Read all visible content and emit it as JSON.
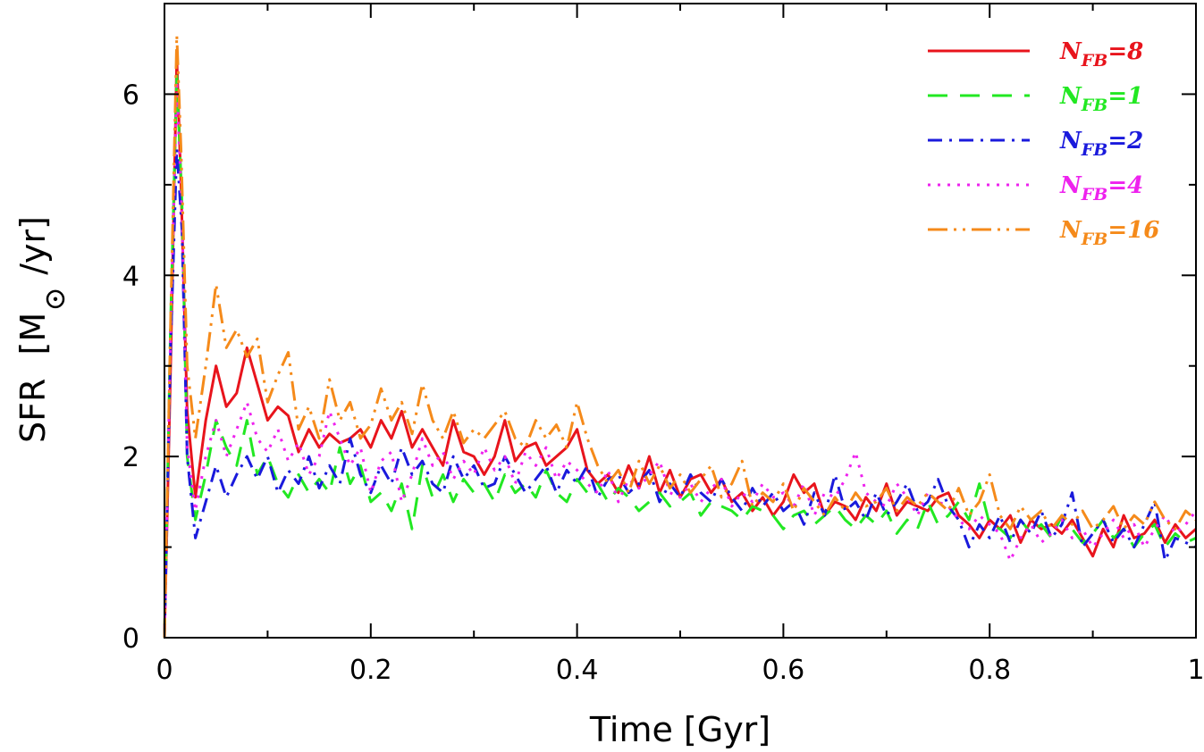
{
  "chart_data": {
    "type": "line",
    "xlabel": "Time [Gyr]",
    "ylabel_main": "SFR",
    "ylabel_unit_prefix": "[M",
    "ylabel_unit_suffix": "/yr]",
    "xlim": [
      0,
      1
    ],
    "ylim": [
      0,
      7
    ],
    "x_ticks": [
      0,
      0.2,
      0.4,
      0.6,
      0.8,
      1
    ],
    "x_tick_labels": [
      "0",
      "0.2",
      "0.4",
      "0.6",
      "0.8",
      "1"
    ],
    "y_ticks": [
      0,
      2,
      4,
      6
    ],
    "y_tick_labels": [
      "0",
      "2",
      "4",
      "6"
    ],
    "x_minor_step": 0.1,
    "y_minor_step": 1,
    "grid": false,
    "legend_position": "top-right",
    "series": [
      {
        "label_prefix": "N",
        "label_sub": "FB",
        "label_value": "=8",
        "color": "#e8141c",
        "style": "solid",
        "x": [
          0,
          0.006,
          0.012,
          0.016,
          0.022,
          0.03,
          0.04,
          0.05,
          0.06,
          0.07,
          0.08,
          0.09,
          0.1,
          0.11,
          0.12,
          0.13,
          0.14,
          0.15,
          0.16,
          0.17,
          0.18,
          0.19,
          0.2,
          0.21,
          0.22,
          0.23,
          0.24,
          0.25,
          0.26,
          0.27,
          0.28,
          0.29,
          0.3,
          0.31,
          0.32,
          0.33,
          0.34,
          0.35,
          0.36,
          0.37,
          0.38,
          0.39,
          0.4,
          0.41,
          0.42,
          0.43,
          0.44,
          0.45,
          0.46,
          0.47,
          0.48,
          0.49,
          0.5,
          0.51,
          0.52,
          0.53,
          0.54,
          0.55,
          0.56,
          0.57,
          0.58,
          0.59,
          0.6,
          0.61,
          0.62,
          0.63,
          0.64,
          0.65,
          0.66,
          0.67,
          0.68,
          0.69,
          0.7,
          0.71,
          0.72,
          0.73,
          0.74,
          0.75,
          0.76,
          0.77,
          0.78,
          0.79,
          0.8,
          0.81,
          0.82,
          0.83,
          0.84,
          0.85,
          0.86,
          0.87,
          0.88,
          0.89,
          0.9,
          0.91,
          0.92,
          0.93,
          0.94,
          0.95,
          0.96,
          0.97,
          0.98,
          0.99,
          1.0
        ],
        "y": [
          0,
          3.0,
          6.4,
          5.0,
          2.5,
          1.55,
          2.4,
          3.0,
          2.55,
          2.7,
          3.2,
          2.8,
          2.4,
          2.55,
          2.45,
          2.05,
          2.3,
          2.1,
          2.25,
          2.15,
          2.2,
          2.3,
          2.1,
          2.4,
          2.2,
          2.5,
          2.1,
          2.3,
          2.1,
          1.9,
          2.4,
          2.05,
          2.0,
          1.8,
          2.0,
          2.4,
          1.95,
          2.1,
          2.15,
          1.9,
          2.0,
          2.1,
          2.3,
          1.85,
          1.7,
          1.8,
          1.6,
          1.9,
          1.65,
          2.0,
          1.6,
          1.85,
          1.55,
          1.75,
          1.8,
          1.6,
          1.75,
          1.5,
          1.6,
          1.4,
          1.55,
          1.35,
          1.5,
          1.8,
          1.6,
          1.7,
          1.35,
          1.5,
          1.45,
          1.3,
          1.55,
          1.4,
          1.7,
          1.35,
          1.5,
          1.45,
          1.4,
          1.55,
          1.6,
          1.35,
          1.25,
          1.1,
          1.3,
          1.2,
          1.35,
          1.05,
          1.3,
          1.2,
          1.25,
          1.15,
          1.3,
          1.1,
          0.9,
          1.2,
          1.0,
          1.35,
          1.1,
          1.15,
          1.3,
          1.05,
          1.25,
          1.1,
          1.2
        ]
      },
      {
        "label_prefix": "N",
        "label_sub": "FB",
        "label_value": "=1",
        "color": "#22e822",
        "style": "dashed",
        "x": [
          0,
          0.006,
          0.012,
          0.017,
          0.022,
          0.03,
          0.04,
          0.05,
          0.06,
          0.07,
          0.08,
          0.09,
          0.1,
          0.11,
          0.12,
          0.13,
          0.14,
          0.15,
          0.16,
          0.17,
          0.18,
          0.19,
          0.2,
          0.21,
          0.22,
          0.23,
          0.24,
          0.25,
          0.26,
          0.27,
          0.28,
          0.29,
          0.3,
          0.31,
          0.32,
          0.33,
          0.34,
          0.35,
          0.36,
          0.37,
          0.38,
          0.39,
          0.4,
          0.41,
          0.42,
          0.43,
          0.44,
          0.45,
          0.46,
          0.47,
          0.48,
          0.49,
          0.5,
          0.51,
          0.52,
          0.53,
          0.54,
          0.55,
          0.56,
          0.57,
          0.58,
          0.59,
          0.6,
          0.61,
          0.62,
          0.63,
          0.64,
          0.65,
          0.66,
          0.67,
          0.68,
          0.69,
          0.7,
          0.71,
          0.72,
          0.73,
          0.74,
          0.75,
          0.76,
          0.77,
          0.78,
          0.79,
          0.8,
          0.81,
          0.82,
          0.83,
          0.84,
          0.85,
          0.86,
          0.87,
          0.88,
          0.89,
          0.9,
          0.91,
          0.92,
          0.93,
          0.94,
          0.95,
          0.96,
          0.97,
          0.98,
          0.99,
          1.0
        ],
        "y": [
          0,
          3.5,
          6.2,
          4.8,
          2.0,
          1.3,
          1.8,
          2.4,
          2.1,
          1.9,
          2.4,
          1.8,
          2.0,
          1.7,
          1.55,
          1.8,
          1.6,
          1.75,
          1.6,
          2.1,
          1.7,
          1.9,
          1.5,
          1.6,
          1.4,
          1.7,
          1.2,
          1.9,
          1.55,
          1.8,
          1.5,
          1.75,
          1.6,
          1.7,
          1.5,
          1.8,
          1.6,
          1.7,
          1.55,
          1.85,
          1.6,
          1.5,
          1.75,
          1.6,
          1.7,
          1.5,
          1.65,
          1.55,
          1.4,
          1.5,
          1.6,
          1.45,
          1.5,
          1.6,
          1.35,
          1.5,
          1.45,
          1.4,
          1.3,
          1.45,
          1.4,
          1.35,
          1.2,
          1.35,
          1.4,
          1.25,
          1.35,
          1.45,
          1.3,
          1.2,
          1.35,
          1.25,
          1.4,
          1.15,
          1.3,
          1.2,
          1.5,
          1.25,
          1.35,
          1.5,
          1.3,
          1.7,
          1.25,
          1.2,
          1.1,
          1.3,
          1.15,
          1.25,
          1.1,
          1.35,
          1.2,
          1.05,
          1.15,
          1.3,
          1.1,
          1.2,
          1.0,
          1.15,
          1.25,
          1.0,
          1.15,
          1.05,
          1.1
        ]
      },
      {
        "label_prefix": "N",
        "label_sub": "FB",
        "label_value": "=2",
        "color": "#1a1adc",
        "style": "dashdot",
        "x": [
          0,
          0.006,
          0.012,
          0.017,
          0.022,
          0.03,
          0.04,
          0.05,
          0.06,
          0.07,
          0.08,
          0.09,
          0.1,
          0.11,
          0.12,
          0.13,
          0.14,
          0.15,
          0.16,
          0.17,
          0.18,
          0.19,
          0.2,
          0.21,
          0.22,
          0.23,
          0.24,
          0.25,
          0.26,
          0.27,
          0.28,
          0.29,
          0.3,
          0.31,
          0.32,
          0.33,
          0.34,
          0.35,
          0.36,
          0.37,
          0.38,
          0.39,
          0.4,
          0.41,
          0.42,
          0.43,
          0.44,
          0.45,
          0.46,
          0.47,
          0.48,
          0.49,
          0.5,
          0.51,
          0.52,
          0.53,
          0.54,
          0.55,
          0.56,
          0.57,
          0.58,
          0.59,
          0.6,
          0.61,
          0.62,
          0.63,
          0.64,
          0.65,
          0.66,
          0.67,
          0.68,
          0.69,
          0.7,
          0.71,
          0.72,
          0.73,
          0.74,
          0.75,
          0.76,
          0.77,
          0.78,
          0.79,
          0.8,
          0.81,
          0.82,
          0.83,
          0.84,
          0.85,
          0.86,
          0.87,
          0.88,
          0.89,
          0.9,
          0.91,
          0.92,
          0.93,
          0.94,
          0.95,
          0.96,
          0.97,
          0.98,
          0.99,
          1.0
        ],
        "y": [
          0,
          3.2,
          5.4,
          4.5,
          2.0,
          1.1,
          1.5,
          1.9,
          1.55,
          1.8,
          2.0,
          1.75,
          2.0,
          1.6,
          1.85,
          1.7,
          2.0,
          1.65,
          1.9,
          1.7,
          2.2,
          1.8,
          1.6,
          1.9,
          1.7,
          2.1,
          1.8,
          1.95,
          1.7,
          1.6,
          2.0,
          1.75,
          1.9,
          1.65,
          1.7,
          2.0,
          1.8,
          1.6,
          1.75,
          1.9,
          1.6,
          1.85,
          1.7,
          1.9,
          1.55,
          1.75,
          1.8,
          1.6,
          1.7,
          1.85,
          1.5,
          1.7,
          1.55,
          1.8,
          1.6,
          1.5,
          1.75,
          1.55,
          1.4,
          1.65,
          1.45,
          1.6,
          1.4,
          1.5,
          1.25,
          1.6,
          1.35,
          1.8,
          1.4,
          1.5,
          1.3,
          1.6,
          1.35,
          1.5,
          1.7,
          1.4,
          1.5,
          1.75,
          1.45,
          1.3,
          1.0,
          1.25,
          1.1,
          1.35,
          1.05,
          1.3,
          1.15,
          1.4,
          1.1,
          1.25,
          1.6,
          1.0,
          1.15,
          1.3,
          1.05,
          1.2,
          1.0,
          1.25,
          1.5,
          0.85,
          1.1,
          1.05,
          1.0
        ]
      },
      {
        "label_prefix": "N",
        "label_sub": "FB",
        "label_value": "=4",
        "color": "#ee22ee",
        "style": "dotted",
        "x": [
          0,
          0.006,
          0.012,
          0.017,
          0.022,
          0.03,
          0.04,
          0.05,
          0.06,
          0.07,
          0.08,
          0.09,
          0.1,
          0.11,
          0.12,
          0.13,
          0.14,
          0.15,
          0.16,
          0.17,
          0.18,
          0.19,
          0.2,
          0.21,
          0.22,
          0.23,
          0.24,
          0.25,
          0.26,
          0.27,
          0.28,
          0.29,
          0.3,
          0.31,
          0.32,
          0.33,
          0.34,
          0.35,
          0.36,
          0.37,
          0.38,
          0.39,
          0.4,
          0.41,
          0.42,
          0.43,
          0.44,
          0.45,
          0.46,
          0.47,
          0.48,
          0.49,
          0.5,
          0.51,
          0.52,
          0.53,
          0.54,
          0.55,
          0.56,
          0.57,
          0.58,
          0.59,
          0.6,
          0.61,
          0.62,
          0.63,
          0.64,
          0.65,
          0.66,
          0.67,
          0.68,
          0.69,
          0.7,
          0.71,
          0.72,
          0.73,
          0.74,
          0.75,
          0.76,
          0.77,
          0.78,
          0.79,
          0.8,
          0.81,
          0.82,
          0.83,
          0.84,
          0.85,
          0.86,
          0.87,
          0.88,
          0.89,
          0.9,
          0.91,
          0.92,
          0.93,
          0.94,
          0.95,
          0.96,
          0.97,
          0.98,
          0.99,
          1.0
        ],
        "y": [
          0,
          3.4,
          6.1,
          4.7,
          2.1,
          1.4,
          2.0,
          2.4,
          2.0,
          2.3,
          2.6,
          2.2,
          2.05,
          2.3,
          1.95,
          2.15,
          1.8,
          2.0,
          2.5,
          2.2,
          1.9,
          2.1,
          1.6,
          1.95,
          2.05,
          1.5,
          1.8,
          2.2,
          1.9,
          2.05,
          1.75,
          1.95,
          1.8,
          2.1,
          1.85,
          2.0,
          1.7,
          2.05,
          1.9,
          2.1,
          1.75,
          1.95,
          1.85,
          1.7,
          1.6,
          1.85,
          1.5,
          1.75,
          1.65,
          1.8,
          1.95,
          1.6,
          1.55,
          1.7,
          1.5,
          1.65,
          1.75,
          1.45,
          1.6,
          1.5,
          1.7,
          1.55,
          1.6,
          1.45,
          1.7,
          1.35,
          1.6,
          1.55,
          1.75,
          2.05,
          1.6,
          1.5,
          1.45,
          1.7,
          1.55,
          1.35,
          1.6,
          1.5,
          1.45,
          1.3,
          1.2,
          1.35,
          1.25,
          1.15,
          0.85,
          1.1,
          1.25,
          1.05,
          1.15,
          1.3,
          1.1,
          1.2,
          1.0,
          1.15,
          1.3,
          1.1,
          1.25,
          1.0,
          1.2,
          1.35,
          1.15,
          1.25,
          1.4
        ]
      },
      {
        "label_prefix": "N",
        "label_sub": "FB",
        "label_value": "=16",
        "color": "#f58a1a",
        "style": "dashdotdot",
        "x": [
          0,
          0.006,
          0.012,
          0.016,
          0.022,
          0.03,
          0.04,
          0.05,
          0.06,
          0.07,
          0.08,
          0.09,
          0.1,
          0.11,
          0.12,
          0.13,
          0.14,
          0.15,
          0.16,
          0.17,
          0.18,
          0.19,
          0.2,
          0.21,
          0.22,
          0.23,
          0.24,
          0.25,
          0.26,
          0.27,
          0.28,
          0.29,
          0.3,
          0.31,
          0.32,
          0.33,
          0.34,
          0.35,
          0.36,
          0.37,
          0.38,
          0.39,
          0.4,
          0.41,
          0.42,
          0.43,
          0.44,
          0.45,
          0.46,
          0.47,
          0.48,
          0.49,
          0.5,
          0.51,
          0.52,
          0.53,
          0.54,
          0.55,
          0.56,
          0.57,
          0.58,
          0.59,
          0.6,
          0.61,
          0.62,
          0.63,
          0.64,
          0.65,
          0.66,
          0.67,
          0.68,
          0.69,
          0.7,
          0.71,
          0.72,
          0.73,
          0.74,
          0.75,
          0.76,
          0.77,
          0.78,
          0.79,
          0.8,
          0.81,
          0.82,
          0.83,
          0.84,
          0.85,
          0.86,
          0.87,
          0.88,
          0.89,
          0.9,
          0.91,
          0.92,
          0.93,
          0.94,
          0.95,
          0.96,
          0.97,
          0.98,
          0.99,
          1.0
        ],
        "y": [
          0,
          3.5,
          6.65,
          5.4,
          3.0,
          2.2,
          3.0,
          3.9,
          3.2,
          3.4,
          3.1,
          3.3,
          2.6,
          2.9,
          3.15,
          2.3,
          2.55,
          2.2,
          2.85,
          2.4,
          2.6,
          2.2,
          2.35,
          2.75,
          2.4,
          2.6,
          2.25,
          2.8,
          2.4,
          2.2,
          2.5,
          2.15,
          2.3,
          2.2,
          2.35,
          2.5,
          2.2,
          2.1,
          2.4,
          2.2,
          2.35,
          2.1,
          2.6,
          2.2,
          1.9,
          1.7,
          1.85,
          1.6,
          1.95,
          1.7,
          1.9,
          1.65,
          1.8,
          1.6,
          1.75,
          1.9,
          1.55,
          1.7,
          1.95,
          1.45,
          1.6,
          1.5,
          1.7,
          1.4,
          1.65,
          1.5,
          1.35,
          1.55,
          1.4,
          1.6,
          1.45,
          1.5,
          1.65,
          1.4,
          1.55,
          1.45,
          1.6,
          1.5,
          1.4,
          1.65,
          1.35,
          1.5,
          1.8,
          1.35,
          1.2,
          1.45,
          1.3,
          1.4,
          1.2,
          1.35,
          1.25,
          1.4,
          1.2,
          1.3,
          1.45,
          1.2,
          1.35,
          1.25,
          1.5,
          1.3,
          1.2,
          1.4,
          1.3
        ]
      }
    ]
  }
}
